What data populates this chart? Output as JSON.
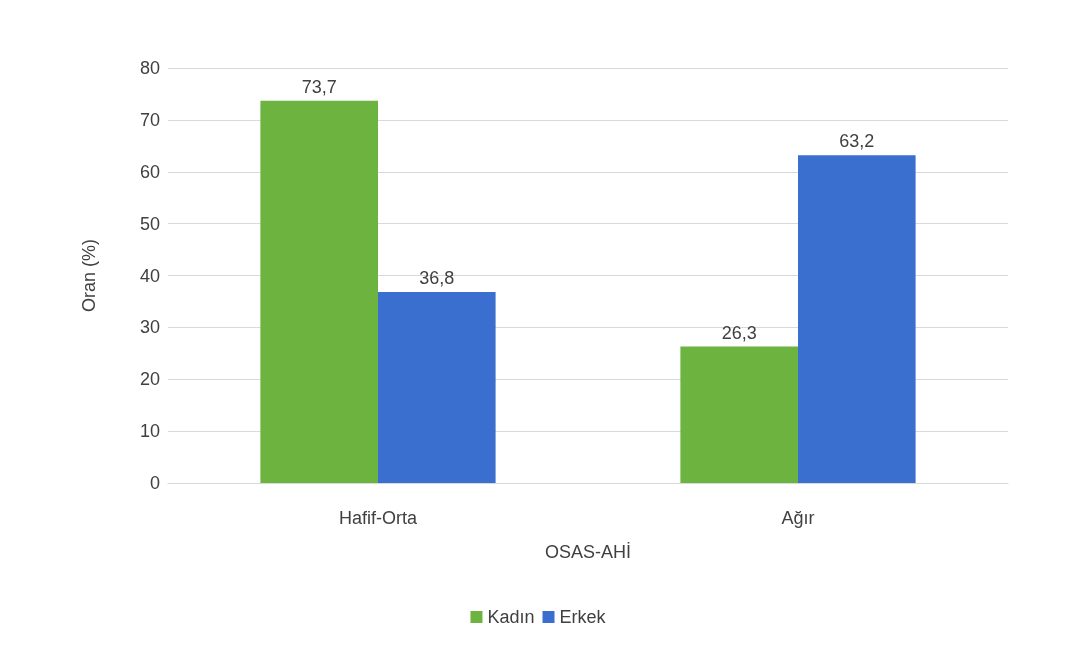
{
  "chart_data": {
    "type": "bar",
    "xlabel": "OSAS-AHİ",
    "ylabel": "Oran (%)",
    "categories": [
      "Hafif-Orta",
      "Ağır"
    ],
    "series": [
      {
        "name": "Kadın",
        "color": "#6db33f",
        "values": [
          73.7,
          26.3
        ],
        "value_labels": [
          "73,7",
          "26,3"
        ]
      },
      {
        "name": "Erkek",
        "color": "#3a6fd0",
        "values": [
          36.8,
          63.2
        ],
        "value_labels": [
          "36,8",
          "63,2"
        ]
      }
    ],
    "ylim": [
      0,
      80
    ],
    "yticks": [
      0,
      10,
      20,
      30,
      40,
      50,
      60,
      70,
      80
    ],
    "grid": "y",
    "legend": "bottom"
  }
}
